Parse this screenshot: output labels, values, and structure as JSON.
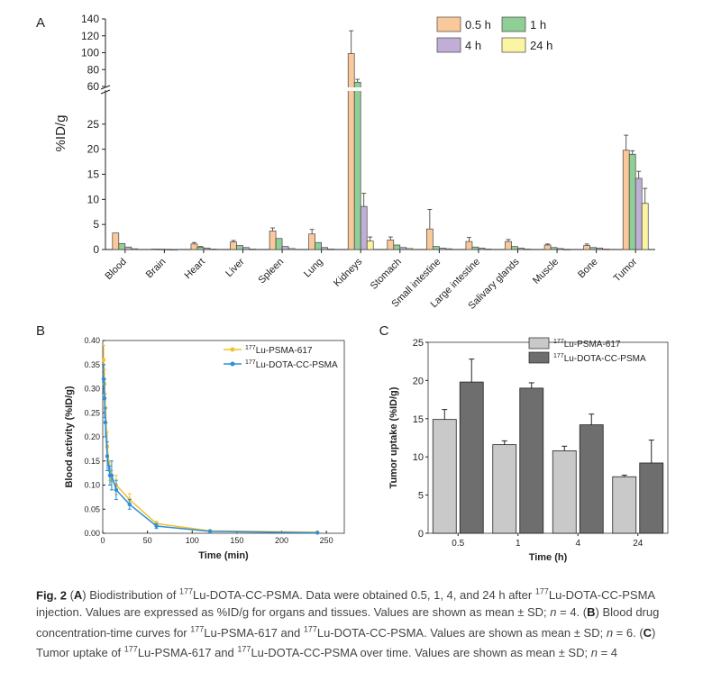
{
  "figure": {
    "caption": {
      "fig_label": "Fig. 2",
      "parts": [
        {
          "t": " ("
        },
        {
          "t": "A",
          "b": true
        },
        {
          "t": ") Biodistribution of "
        },
        {
          "t": "177",
          "sup": true
        },
        {
          "t": "Lu-DOTA-CC-PSMA. Data were obtained 0.5, 1, 4, and 24 h after "
        },
        {
          "t": "177",
          "sup": true
        },
        {
          "t": "Lu-DOTA-CC-PSMA injection. Values are expressed as %ID/g for organs and tissues. Values are shown as mean ± SD; "
        },
        {
          "t": "n",
          "i": true
        },
        {
          "t": " = 4. ("
        },
        {
          "t": "B",
          "b": true
        },
        {
          "t": ") Blood drug concentration-time curves for "
        },
        {
          "t": "177",
          "sup": true
        },
        {
          "t": "Lu-PSMA-617 and "
        },
        {
          "t": "177",
          "sup": true
        },
        {
          "t": "Lu-DOTA-CC-PSMA. Values are shown as mean ± SD; "
        },
        {
          "t": "n",
          "i": true
        },
        {
          "t": " = 6. ("
        },
        {
          "t": "C",
          "b": true
        },
        {
          "t": ") Tumor uptake of "
        },
        {
          "t": "177",
          "sup": true
        },
        {
          "t": "Lu-PSMA-617 and "
        },
        {
          "t": "177",
          "sup": true
        },
        {
          "t": "Lu-DOTA-CC-PSMA over time. Values are shown as mean ± SD; "
        },
        {
          "t": "n",
          "i": true
        },
        {
          "t": " = 4"
        }
      ]
    }
  },
  "chart_data": [
    {
      "panel": "A",
      "type": "bar",
      "title": "",
      "xlabel": "",
      "ylabel": "%ID/g",
      "ylim_lower": [
        0,
        30
      ],
      "ylim_upper": [
        60,
        140
      ],
      "yticks_lower": [
        0,
        5,
        10,
        15,
        20,
        25
      ],
      "yticks_upper": [
        60,
        80,
        100,
        120,
        140
      ],
      "categories": [
        "Blood",
        "Brain",
        "Heart",
        "Liver",
        "Spleen",
        "Lung",
        "Kidneys",
        "Stomach",
        "Small intestine",
        "Large intestine",
        "Salivary glands",
        "Muscle",
        "Bone",
        "Tumor"
      ],
      "legend_position": "top-right",
      "series": [
        {
          "name": "0.5 h",
          "color": "#f9c89b",
          "values": [
            3.3,
            0.1,
            1.1,
            1.5,
            3.7,
            3.1,
            99,
            1.9,
            4.1,
            1.6,
            1.6,
            0.9,
            0.8,
            19.8
          ],
          "errors": [
            0,
            0,
            0.3,
            0.3,
            0.6,
            0.9,
            27,
            0.6,
            3.9,
            0.8,
            0.4,
            0.2,
            0.3,
            3.0
          ]
        },
        {
          "name": "1 h",
          "color": "#8fcf96",
          "values": [
            1.2,
            0.08,
            0.5,
            0.8,
            2.2,
            1.4,
            65,
            0.9,
            0.6,
            0.5,
            0.6,
            0.4,
            0.4,
            19.0
          ],
          "errors": [
            0,
            0,
            0.1,
            0,
            0,
            0,
            3.5,
            0,
            0,
            0,
            0,
            0,
            0,
            0.7
          ]
        },
        {
          "name": "4 h",
          "color": "#c0aed6",
          "values": [
            0.5,
            0.05,
            0.3,
            0.4,
            0.6,
            0.4,
            8.6,
            0.4,
            0.3,
            0.3,
            0.3,
            0.2,
            0.3,
            14.2
          ],
          "errors": [
            0,
            0,
            0,
            0,
            0,
            0,
            2.6,
            0,
            0,
            0,
            0,
            0,
            0,
            1.4
          ]
        },
        {
          "name": "24 h",
          "color": "#fbf4a2",
          "values": [
            0.15,
            0.02,
            0.1,
            0.1,
            0.2,
            0.1,
            1.7,
            0.2,
            0.15,
            0.1,
            0.1,
            0.05,
            0.1,
            9.2
          ],
          "errors": [
            0,
            0,
            0,
            0,
            0,
            0,
            0.8,
            0,
            0,
            0,
            0,
            0,
            0,
            3.0
          ]
        }
      ]
    },
    {
      "panel": "B",
      "type": "line",
      "title": "",
      "xlabel": "Time (min)",
      "ylabel": "Blood activity (%ID/g)",
      "xlim": [
        0,
        270
      ],
      "ylim": [
        0,
        0.4
      ],
      "xticks": [
        0,
        50,
        100,
        150,
        200,
        250
      ],
      "yticks": [
        "0.00",
        "0.05",
        "0.10",
        "0.15",
        "0.20",
        "0.25",
        "0.30",
        "0.35",
        "0.40"
      ],
      "legend_position": "top-right",
      "series": [
        {
          "name_sup": "177",
          "name": "Lu-PSMA-617",
          "color": "#f2c12e",
          "x": [
            1,
            2,
            3,
            5,
            8,
            10,
            15,
            30,
            60,
            120,
            240
          ],
          "y": [
            0.36,
            0.31,
            0.26,
            0.18,
            0.13,
            0.11,
            0.1,
            0.07,
            0.02,
            0.005,
            0.002
          ],
          "errors": [
            0.03,
            0.03,
            0.03,
            0.03,
            0.02,
            0.02,
            0.02,
            0.012,
            0.005,
            0,
            0
          ]
        },
        {
          "name_sup": "177",
          "name": "Lu-DOTA-CC-PSMA",
          "color": "#2e8fd8",
          "x": [
            1,
            2,
            3,
            5,
            8,
            10,
            15,
            30,
            60,
            120,
            240
          ],
          "y": [
            0.32,
            0.28,
            0.23,
            0.16,
            0.12,
            0.12,
            0.09,
            0.06,
            0.015,
            0.004,
            0.001
          ],
          "errors": [
            0.03,
            0.04,
            0.03,
            0.03,
            0.02,
            0.03,
            0.02,
            0.01,
            0.005,
            0,
            0
          ]
        }
      ]
    },
    {
      "panel": "C",
      "type": "bar",
      "title": "",
      "xlabel": "Time (h)",
      "ylabel": "Tumor uptake (%ID/g)",
      "ylim": [
        0,
        25
      ],
      "yticks": [
        0,
        5,
        10,
        15,
        20,
        25
      ],
      "categories": [
        "0.5",
        "1",
        "4",
        "24"
      ],
      "legend_position": "top-right",
      "series": [
        {
          "name_sup": "177",
          "name": "Lu-PSMA-617",
          "color": "#c9c9c9",
          "values": [
            14.9,
            11.6,
            10.8,
            7.4
          ],
          "errors": [
            1.3,
            0.5,
            0.6,
            0.2
          ]
        },
        {
          "name_sup": "177",
          "name": "Lu-DOTA-CC-PSMA",
          "color": "#6e6e6e",
          "values": [
            19.8,
            19.0,
            14.2,
            9.2
          ],
          "errors": [
            3.0,
            0.7,
            1.4,
            3.0
          ]
        }
      ]
    }
  ]
}
